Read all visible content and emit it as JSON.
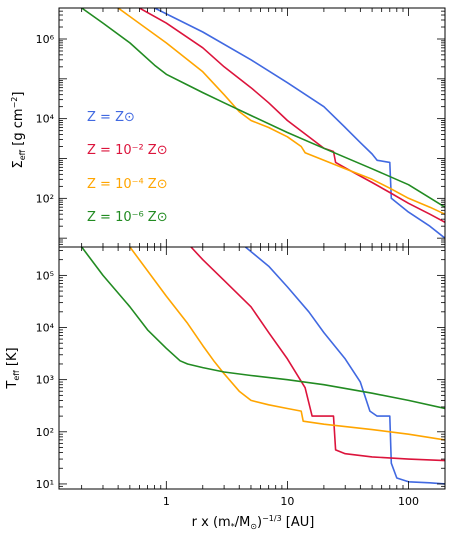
{
  "chart_data": [
    {
      "type": "line",
      "panel": "top",
      "ylabel_main": "Σ",
      "ylabel_sub": "eff",
      "ylabel_unit": "[g cm",
      "ylabel_exp": "−2",
      "ylabel_close": "]",
      "xscale": "log",
      "yscale": "log",
      "xlim": [
        0.13,
        200
      ],
      "ylim": [
        6,
        6000000
      ],
      "ytick_values": [
        100,
        10000,
        1000000
      ],
      "ytick_labels": [
        "10²",
        "10⁴",
        "10⁶"
      ],
      "legend_placement": "left",
      "series": [
        {
          "name": "Z = Z⊙",
          "color": "#4169e1",
          "x": [
            0.8,
            2,
            5,
            10,
            20,
            30,
            40,
            50,
            55,
            70,
            72,
            100,
            150,
            200
          ],
          "y": [
            6000000,
            1500000,
            300000,
            80000,
            20000,
            6000,
            2500,
            1300,
            900,
            800,
            100,
            45,
            20,
            10
          ]
        },
        {
          "name": "Z = 10⁻² Z⊙",
          "color": "#dc143c",
          "x": [
            0.6,
            1,
            2,
            3,
            5,
            7,
            10,
            15,
            20,
            24,
            25,
            35,
            50,
            70,
            100,
            150,
            200
          ],
          "y": [
            6000000,
            2500000,
            600000,
            200000,
            60000,
            25000,
            9000,
            3500,
            1800,
            1500,
            800,
            450,
            250,
            140,
            75,
            40,
            25
          ]
        },
        {
          "name": "Z = 10⁻⁴ Z⊙",
          "color": "#ffa500",
          "x": [
            0.4,
            1,
            2,
            3,
            4,
            5,
            7,
            10,
            13,
            14,
            20,
            30,
            50,
            70,
            100,
            150,
            200
          ],
          "y": [
            6000000,
            800000,
            150000,
            40000,
            15000,
            9000,
            6000,
            3500,
            2000,
            1400,
            900,
            550,
            300,
            180,
            100,
            60,
            40
          ]
        },
        {
          "name": "Z = 10⁻⁶ Z⊙",
          "color": "#228b22",
          "x": [
            0.2,
            0.3,
            0.5,
            0.8,
            1,
            1.5,
            2,
            3,
            5,
            10,
            20,
            50,
            100,
            200
          ],
          "y": [
            6000000,
            2500000,
            800000,
            220000,
            130000,
            70000,
            45000,
            25000,
            12000,
            4500,
            1800,
            550,
            220,
            60
          ]
        }
      ]
    },
    {
      "type": "line",
      "panel": "bottom",
      "ylabel_main": "T",
      "ylabel_sub": "eff",
      "ylabel_unit": "[K]",
      "xlabel_pre": "r x (m",
      "xlabel_sub1": "*",
      "xlabel_mid": "/M",
      "xlabel_sub2": "⊙",
      "xlabel_post": ")",
      "xlabel_exp": "−1/3",
      "xlabel_unit": "[AU]",
      "xscale": "log",
      "yscale": "log",
      "xlim": [
        0.13,
        200
      ],
      "ylim": [
        8,
        350000
      ],
      "xtick_values": [
        1,
        10,
        100
      ],
      "xtick_labels": [
        "1",
        "10",
        "100"
      ],
      "ytick_values": [
        10,
        100,
        1000,
        10000,
        100000
      ],
      "ytick_labels": [
        "10¹",
        "10²",
        "10³",
        "10⁴",
        "10⁵"
      ],
      "series": [
        {
          "name": "Z = Z⊙",
          "color": "#4169e1",
          "x": [
            4.5,
            7,
            10,
            15,
            20,
            30,
            40,
            48,
            55,
            70,
            72,
            80,
            100,
            150,
            200
          ],
          "y": [
            350000,
            150000,
            60000,
            20000,
            8000,
            2500,
            900,
            250,
            200,
            200,
            25,
            13,
            11,
            10.5,
            10
          ]
        },
        {
          "name": "Z = 10⁻² Z⊙",
          "color": "#dc143c",
          "x": [
            1.6,
            2,
            3,
            5,
            7,
            10,
            14,
            16,
            24,
            25,
            30,
            50,
            100,
            200
          ],
          "y": [
            350000,
            200000,
            80000,
            25000,
            8000,
            2500,
            700,
            200,
            200,
            45,
            38,
            33,
            30,
            28
          ]
        },
        {
          "name": "Z = 10⁻⁴ Z⊙",
          "color": "#ffa500",
          "x": [
            0.5,
            1,
            1.5,
            2,
            2.5,
            3,
            4,
            5,
            7,
            10,
            13,
            13.5,
            20,
            50,
            100,
            200
          ],
          "y": [
            350000,
            40000,
            12000,
            4500,
            2200,
            1300,
            600,
            400,
            330,
            280,
            250,
            160,
            140,
            110,
            90,
            70
          ]
        },
        {
          "name": "Z = 10⁻⁶ Z⊙",
          "color": "#228b22",
          "x": [
            0.2,
            0.3,
            0.5,
            0.7,
            1,
            1.3,
            1.5,
            2,
            3,
            5,
            10,
            20,
            50,
            100,
            200
          ],
          "y": [
            350000,
            100000,
            25000,
            9000,
            4000,
            2300,
            2000,
            1700,
            1400,
            1200,
            1000,
            800,
            550,
            400,
            280
          ]
        }
      ]
    }
  ]
}
